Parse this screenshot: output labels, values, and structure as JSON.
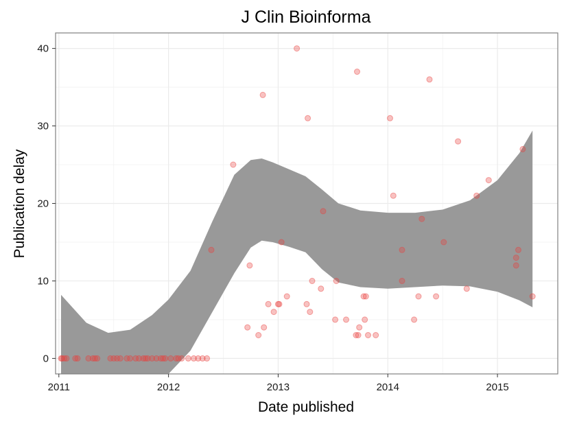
{
  "chart_data": {
    "type": "scatter",
    "title": "J Clin Bioinforma",
    "xlabel": "Date published",
    "ylabel": "Publication delay",
    "xlim": [
      2010.97,
      2015.55
    ],
    "ylim": [
      -2,
      42
    ],
    "x_ticks": [
      2011,
      2012,
      2013,
      2014,
      2015
    ],
    "x_tick_labels": [
      "2011",
      "2012",
      "2013",
      "2014",
      "2015"
    ],
    "y_ticks": [
      0,
      10,
      20,
      30,
      40
    ],
    "y_tick_labels": [
      "0",
      "10",
      "20",
      "30",
      "40"
    ],
    "grid": true,
    "point_color": "#e8403f",
    "ribbon_color": "#999999",
    "points": [
      {
        "x": 2011.02,
        "y": 0
      },
      {
        "x": 2011.03,
        "y": 0
      },
      {
        "x": 2011.05,
        "y": 0
      },
      {
        "x": 2011.07,
        "y": 0
      },
      {
        "x": 2011.15,
        "y": 0
      },
      {
        "x": 2011.17,
        "y": 0
      },
      {
        "x": 2011.27,
        "y": 0
      },
      {
        "x": 2011.31,
        "y": 0
      },
      {
        "x": 2011.33,
        "y": 0
      },
      {
        "x": 2011.35,
        "y": 0
      },
      {
        "x": 2011.47,
        "y": 0
      },
      {
        "x": 2011.5,
        "y": 0
      },
      {
        "x": 2011.53,
        "y": 0
      },
      {
        "x": 2011.56,
        "y": 0
      },
      {
        "x": 2011.62,
        "y": 0
      },
      {
        "x": 2011.65,
        "y": 0
      },
      {
        "x": 2011.7,
        "y": 0
      },
      {
        "x": 2011.73,
        "y": 0
      },
      {
        "x": 2011.77,
        "y": 0
      },
      {
        "x": 2011.79,
        "y": 0
      },
      {
        "x": 2011.81,
        "y": 0
      },
      {
        "x": 2011.85,
        "y": 0
      },
      {
        "x": 2011.89,
        "y": 0
      },
      {
        "x": 2011.93,
        "y": 0
      },
      {
        "x": 2011.95,
        "y": 0
      },
      {
        "x": 2011.97,
        "y": 0
      },
      {
        "x": 2012.02,
        "y": 0
      },
      {
        "x": 2012.07,
        "y": 0
      },
      {
        "x": 2012.09,
        "y": 0
      },
      {
        "x": 2012.12,
        "y": 0
      },
      {
        "x": 2012.18,
        "y": 0
      },
      {
        "x": 2012.23,
        "y": 0
      },
      {
        "x": 2012.27,
        "y": 0
      },
      {
        "x": 2012.31,
        "y": 0
      },
      {
        "x": 2012.35,
        "y": 0
      },
      {
        "x": 2012.39,
        "y": 14
      },
      {
        "x": 2012.59,
        "y": 25
      },
      {
        "x": 2012.72,
        "y": 4
      },
      {
        "x": 2012.74,
        "y": 12
      },
      {
        "x": 2012.82,
        "y": 3
      },
      {
        "x": 2012.86,
        "y": 34
      },
      {
        "x": 2012.87,
        "y": 4
      },
      {
        "x": 2012.91,
        "y": 7
      },
      {
        "x": 2012.96,
        "y": 6
      },
      {
        "x": 2013.0,
        "y": 7
      },
      {
        "x": 2013.01,
        "y": 7
      },
      {
        "x": 2013.03,
        "y": 15
      },
      {
        "x": 2013.08,
        "y": 8
      },
      {
        "x": 2013.17,
        "y": 40
      },
      {
        "x": 2013.26,
        "y": 7
      },
      {
        "x": 2013.27,
        "y": 31
      },
      {
        "x": 2013.29,
        "y": 6
      },
      {
        "x": 2013.31,
        "y": 10
      },
      {
        "x": 2013.39,
        "y": 9
      },
      {
        "x": 2013.41,
        "y": 19
      },
      {
        "x": 2013.52,
        "y": 5
      },
      {
        "x": 2013.53,
        "y": 10
      },
      {
        "x": 2013.62,
        "y": 5
      },
      {
        "x": 2013.71,
        "y": 3
      },
      {
        "x": 2013.72,
        "y": 37
      },
      {
        "x": 2013.73,
        "y": 3
      },
      {
        "x": 2013.74,
        "y": 4
      },
      {
        "x": 2013.78,
        "y": 8
      },
      {
        "x": 2013.79,
        "y": 5
      },
      {
        "x": 2013.8,
        "y": 8
      },
      {
        "x": 2013.82,
        "y": 3
      },
      {
        "x": 2013.89,
        "y": 3
      },
      {
        "x": 2014.02,
        "y": 31
      },
      {
        "x": 2014.05,
        "y": 21
      },
      {
        "x": 2014.13,
        "y": 14
      },
      {
        "x": 2014.13,
        "y": 10
      },
      {
        "x": 2014.24,
        "y": 5
      },
      {
        "x": 2014.28,
        "y": 8
      },
      {
        "x": 2014.31,
        "y": 18
      },
      {
        "x": 2014.38,
        "y": 36
      },
      {
        "x": 2014.44,
        "y": 8
      },
      {
        "x": 2014.51,
        "y": 15
      },
      {
        "x": 2014.64,
        "y": 28
      },
      {
        "x": 2014.72,
        "y": 9
      },
      {
        "x": 2014.81,
        "y": 21
      },
      {
        "x": 2014.92,
        "y": 23
      },
      {
        "x": 2015.17,
        "y": 13
      },
      {
        "x": 2015.17,
        "y": 12
      },
      {
        "x": 2015.19,
        "y": 14
      },
      {
        "x": 2015.23,
        "y": 27
      },
      {
        "x": 2015.32,
        "y": 8
      }
    ],
    "smooth_ribbon": {
      "x": [
        2011.02,
        2011.25,
        2011.45,
        2011.65,
        2011.85,
        2012.0,
        2012.2,
        2012.4,
        2012.6,
        2012.75,
        2012.85,
        2012.95,
        2013.1,
        2013.25,
        2013.4,
        2013.55,
        2013.75,
        2014.0,
        2014.25,
        2014.5,
        2014.75,
        2015.0,
        2015.2,
        2015.32
      ],
      "upper": [
        8.2,
        4.6,
        3.3,
        3.7,
        5.6,
        7.6,
        11.3,
        17.7,
        23.7,
        25.6,
        25.8,
        25.3,
        24.4,
        23.5,
        21.8,
        20.0,
        19.1,
        18.8,
        18.8,
        19.2,
        20.4,
        23.0,
        26.5,
        29.4
      ],
      "lower": [
        -2.0,
        -2.0,
        -2.0,
        -2.0,
        -2.0,
        -2.0,
        1.0,
        6.0,
        11.0,
        14.3,
        15.2,
        15.0,
        14.4,
        13.7,
        11.5,
        9.8,
        9.2,
        9.0,
        9.2,
        9.4,
        9.3,
        8.6,
        7.5,
        6.6
      ]
    }
  }
}
